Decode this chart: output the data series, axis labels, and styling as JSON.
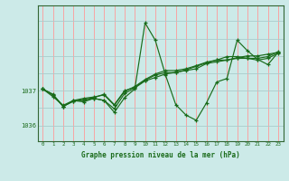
{
  "background_color": "#cceae8",
  "grid_color_vertical": "#ff9999",
  "grid_color_horizontal": "#aacccc",
  "line_color": "#1a6b1a",
  "title": "Graphe pression niveau de la mer (hPa)",
  "xlim": [
    -0.5,
    23.5
  ],
  "ylim_min": 1035.55,
  "ylim_max": 1039.45,
  "yticks": [
    1036,
    1037
  ],
  "xticks": [
    0,
    1,
    2,
    3,
    4,
    5,
    6,
    7,
    8,
    9,
    10,
    11,
    12,
    13,
    14,
    15,
    16,
    17,
    18,
    19,
    20,
    21,
    22,
    23
  ],
  "series": [
    [
      1037.05,
      1036.9,
      1036.55,
      1036.7,
      1036.75,
      1036.8,
      1036.9,
      1036.6,
      1037.0,
      1037.1,
      1037.3,
      1037.45,
      1037.52,
      1037.52,
      1037.6,
      1037.7,
      1037.8,
      1037.88,
      1037.88,
      1037.95,
      1038.0,
      1038.0,
      1038.05,
      1038.1
    ],
    [
      1037.05,
      1036.88,
      1036.55,
      1036.7,
      1036.72,
      1036.78,
      1036.72,
      1036.38,
      1036.8,
      1037.05,
      1038.95,
      1038.45,
      1037.45,
      1036.6,
      1036.3,
      1036.15,
      1036.65,
      1037.25,
      1037.35,
      1038.45,
      1038.15,
      1037.9,
      1037.75,
      1038.1
    ],
    [
      1037.05,
      1036.88,
      1036.55,
      1036.72,
      1036.78,
      1036.82,
      1036.88,
      1036.58,
      1036.98,
      1037.12,
      1037.32,
      1037.48,
      1037.58,
      1037.58,
      1037.63,
      1037.72,
      1037.82,
      1037.88,
      1037.98,
      1037.98,
      1037.93,
      1037.93,
      1037.98,
      1038.12
    ],
    [
      1037.05,
      1036.83,
      1036.58,
      1036.72,
      1036.68,
      1036.78,
      1036.72,
      1036.48,
      1036.92,
      1037.08,
      1037.28,
      1037.38,
      1037.48,
      1037.53,
      1037.58,
      1037.63,
      1037.78,
      1037.83,
      1037.88,
      1037.93,
      1037.93,
      1037.88,
      1037.93,
      1038.08
    ]
  ]
}
